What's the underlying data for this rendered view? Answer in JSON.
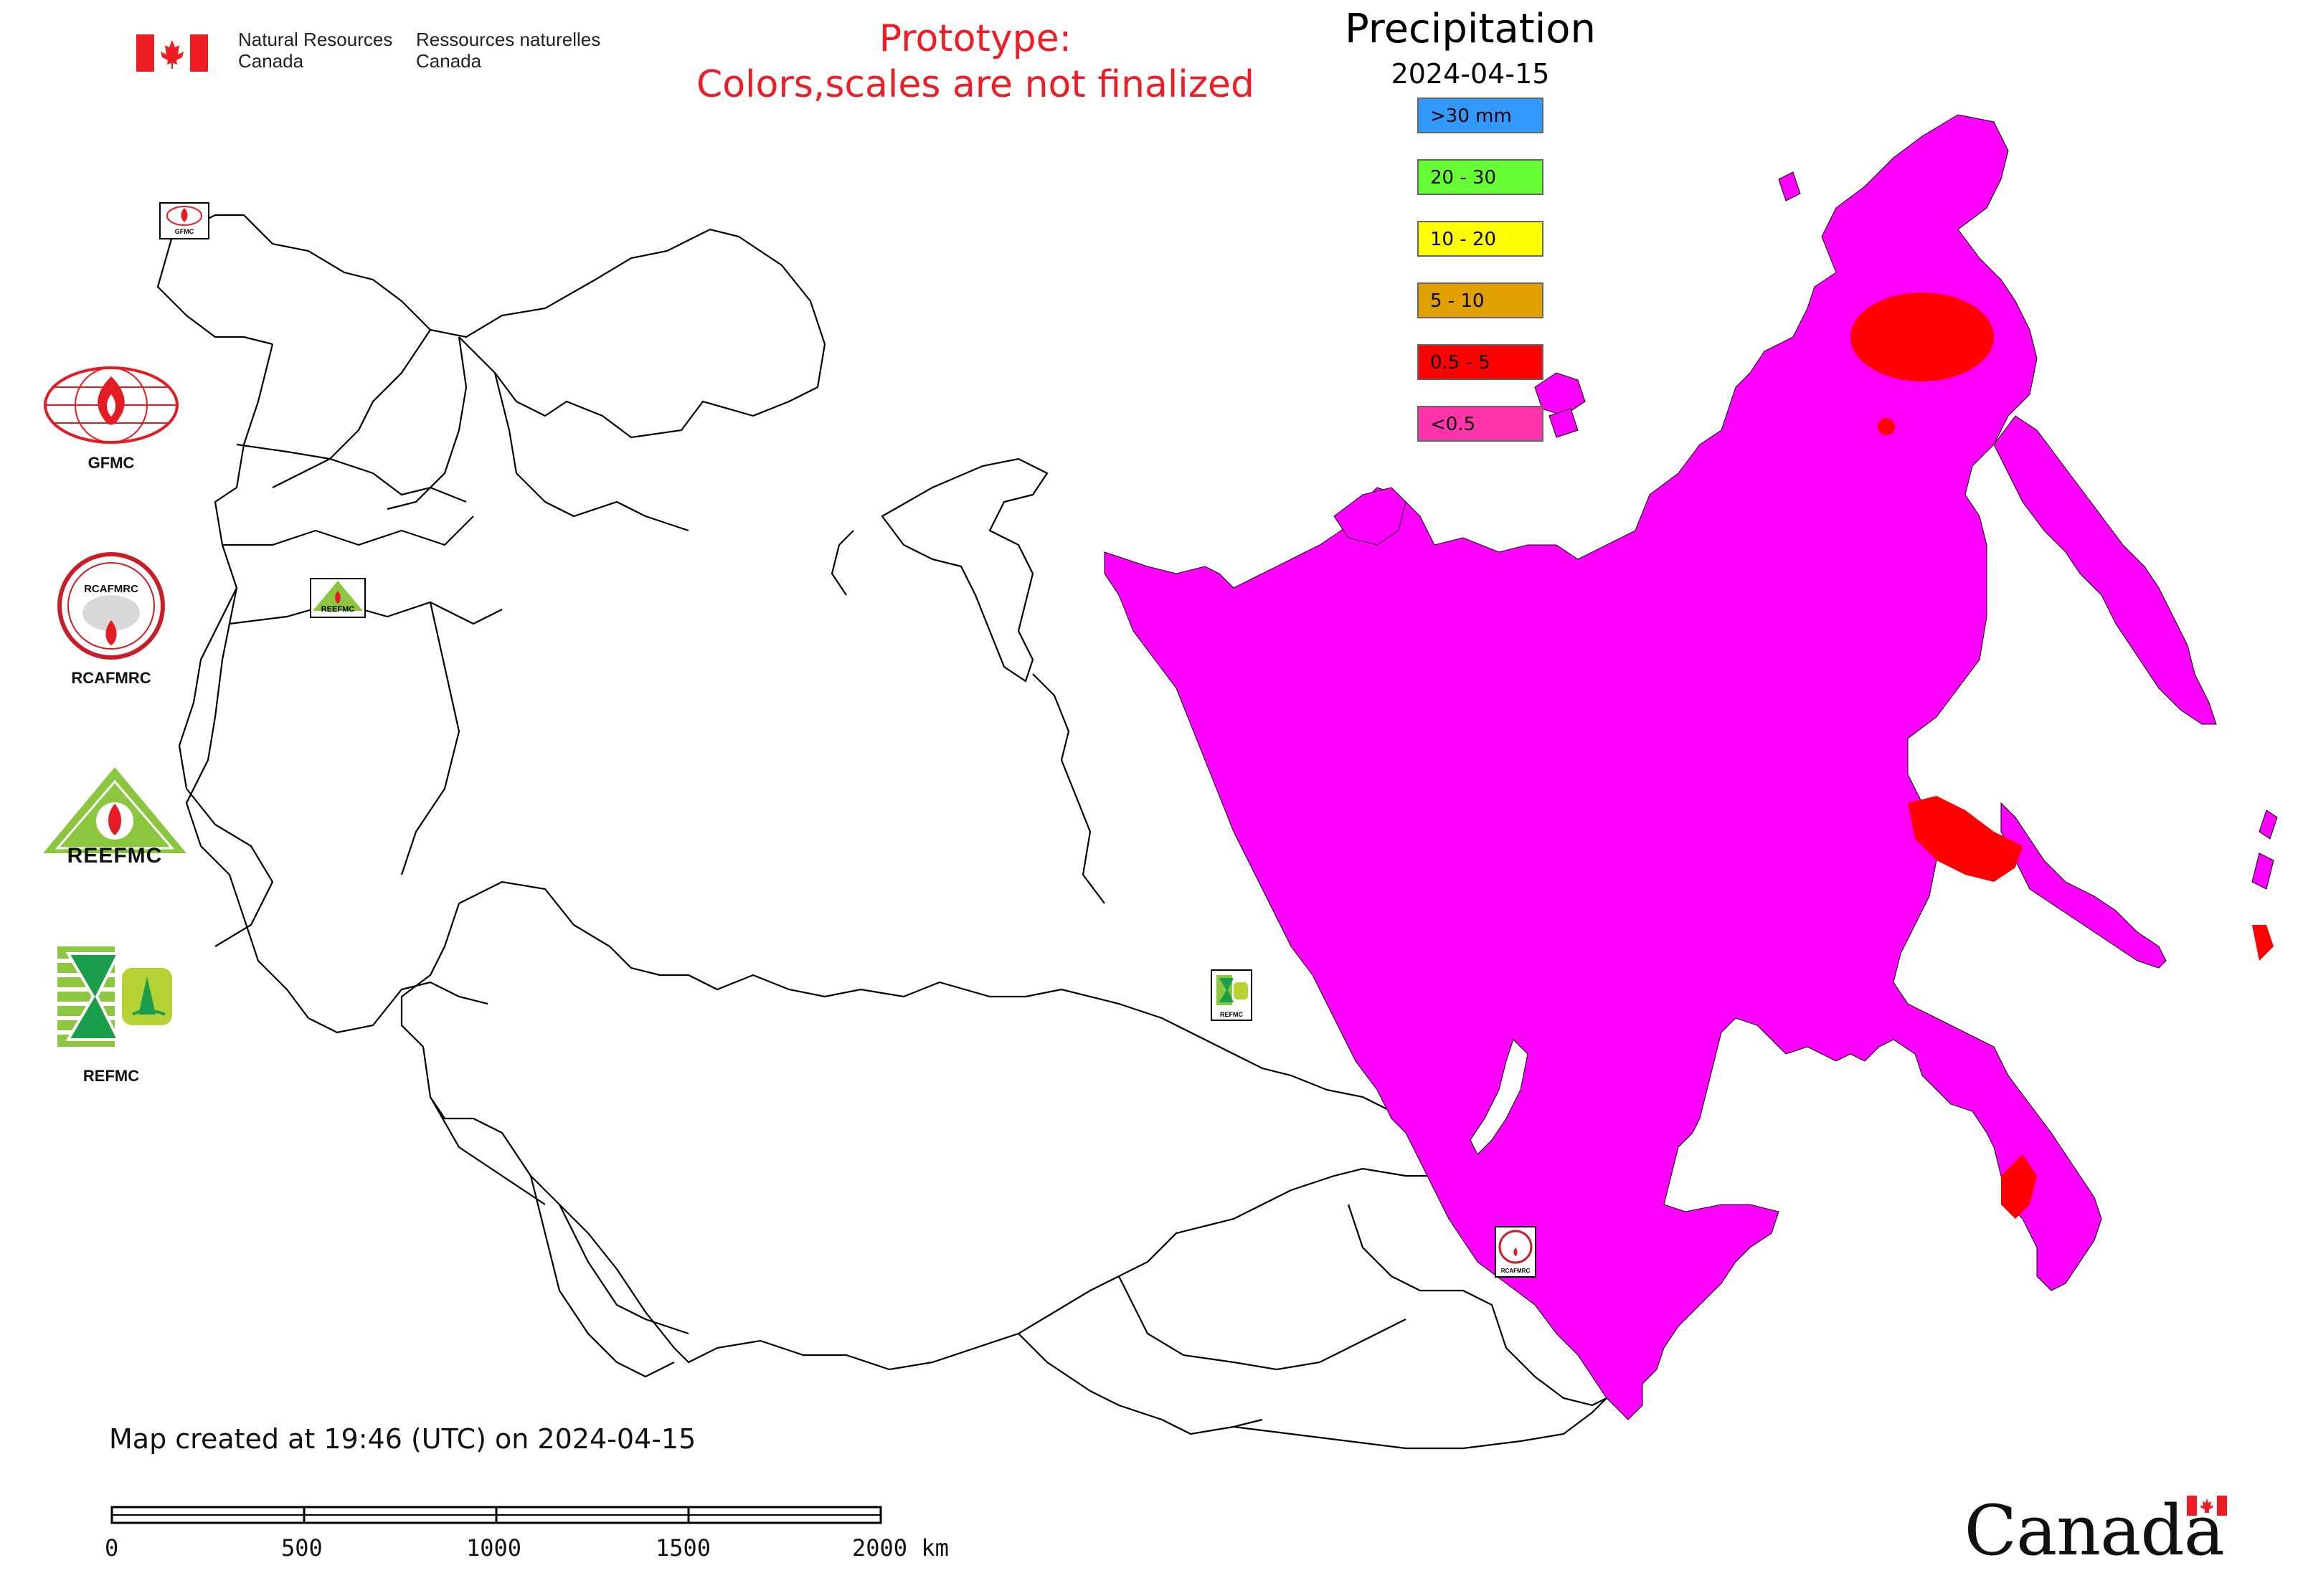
{
  "header": {
    "nrcan_en_line1": "Natural Resources",
    "nrcan_en_line2": "Canada",
    "nrcan_fr_line1": "Ressources naturelles",
    "nrcan_fr_line2": "Canada",
    "prototype_line1": "Prototype:",
    "prototype_line2": "Colors,scales are not finalized",
    "prototype_color": "#ee1c25"
  },
  "legend": {
    "title": "Precipitation",
    "date": "2024-04-15",
    "items": [
      {
        "label": ">30 mm",
        "color": "#3399ff"
      },
      {
        "label": "20 - 30",
        "color": "#66ff33"
      },
      {
        "label": "10 - 20",
        "color": "#ffff00"
      },
      {
        "label": "5 - 10",
        "color": "#e0a000"
      },
      {
        "label": "0.5 - 5",
        "color": "#ff0000"
      },
      {
        "label": "<0.5",
        "color": "#ff33aa"
      }
    ]
  },
  "map": {
    "fill_color": "#ff00ff",
    "red_patch_color": "#ff0000",
    "boundary_color": "#000000"
  },
  "logos": {
    "gfmc": "GFMC",
    "rcafmrc": "RCAFMRC",
    "reefmc_text": "REEFMC",
    "refmc": "REFMC",
    "map_marker_gfmc": "GFMC",
    "map_marker_reefmc": "REEFMC",
    "map_marker_refmc": "REFMC",
    "map_marker_rcafmrc": "RCAFMRC"
  },
  "footer": {
    "created": "Map created at 19:46 (UTC) on 2024-04-15",
    "scale_ticks": [
      "0",
      "500",
      "1000",
      "1500",
      "2000 km"
    ],
    "wordmark": "Canada"
  }
}
